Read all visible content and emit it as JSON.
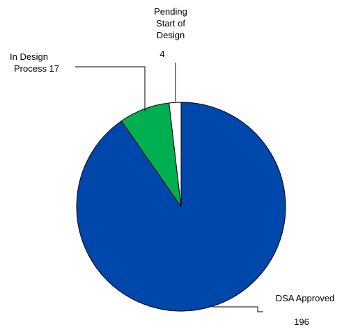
{
  "chart_data": {
    "type": "pie",
    "title": "",
    "slices": [
      {
        "name": "DSA Approved",
        "value": 196,
        "color": "#0047ab"
      },
      {
        "name": "In Design Process",
        "value": 17,
        "color": "#00b050"
      },
      {
        "name": "Pending Start of Design",
        "value": 4,
        "color": "#ffffff"
      }
    ],
    "labels": {
      "approved": {
        "name": "DSA Approved",
        "value": "196"
      },
      "in_design": {
        "line1": "In Design",
        "line2": "Process 17"
      },
      "pending": {
        "line1": "Pending",
        "line2": "Start of",
        "line3": "Design",
        "value": "4"
      }
    },
    "start_angle": "12 o'clock",
    "direction": "clockwise",
    "legend": "none"
  }
}
